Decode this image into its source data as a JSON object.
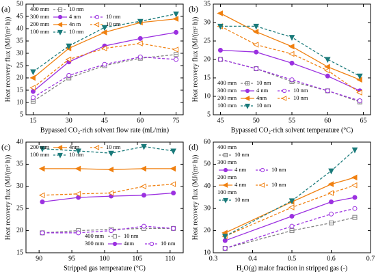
{
  "chart_data": [
    {
      "type": "line",
      "panel_label": "(a)",
      "x_label": "Bypassed CO₂-rich solvent flow rate (mL/min)",
      "y_label": "Heat recovery flux (MJ/(m² h))",
      "x": [
        15,
        30,
        45,
        60,
        75
      ],
      "xlim": [
        12,
        78
      ],
      "xticks": [
        15,
        30,
        45,
        60,
        75
      ],
      "ylim": [
        5,
        50
      ],
      "yticks": [
        5,
        10,
        15,
        20,
        25,
        30,
        35,
        40,
        45,
        50
      ],
      "legend_layout": "rows",
      "groups": [
        {
          "name": "400 mm",
          "legend_corner": "upper left",
          "series": [
            {
              "name": "10 nm",
              "color": "#808080",
              "marker": "square-minus",
              "filled": false,
              "dash": true,
              "values": [
                10.5,
                20,
                25,
                28,
                29.5
              ]
            }
          ]
        },
        {
          "name": "300 mm",
          "legend_corner": "upper left",
          "series": [
            {
              "name": "4 nm",
              "color": "#9b30e0",
              "marker": "circle",
              "filled": true,
              "dash": false,
              "values": [
                14.5,
                26.5,
                33,
                36,
                38.5
              ]
            },
            {
              "name": "10 nm",
              "color": "#9b30e0",
              "marker": "circle",
              "filled": false,
              "dash": true,
              "values": [
                12,
                21,
                25.5,
                28.5,
                27.5
              ]
            }
          ]
        },
        {
          "name": "200 mm",
          "legend_corner": "upper left",
          "series": [
            {
              "name": "4n m",
              "color": "#f08010",
              "marker": "tri-left",
              "filled": true,
              "dash": false,
              "values": [
                20,
                32,
                38.5,
                42.5,
                44
              ]
            },
            {
              "name": "10 nm",
              "color": "#f08010",
              "marker": "tri-left",
              "filled": false,
              "dash": true,
              "values": [
                16,
                27.5,
                32,
                34,
                31.5
              ]
            }
          ]
        },
        {
          "name": "100 mm",
          "legend_corner": "upper left",
          "series": [
            {
              "name": "10 nm",
              "color": "#1a7a7a",
              "marker": "tri-down",
              "filled": true,
              "dash": true,
              "values": [
                22.5,
                33,
                40.5,
                43,
                46
              ]
            }
          ]
        }
      ]
    },
    {
      "type": "line",
      "panel_label": "(b)",
      "x_label": "Bypassed CO₂-rich solvent temperature (°C)",
      "y_label": "Heat recovery flux (MJ/(m² h))",
      "x": [
        45,
        50,
        55,
        60,
        64.5
      ],
      "xlim": [
        44,
        66
      ],
      "xticks": [
        45,
        50,
        55,
        60,
        65
      ],
      "ylim": [
        5,
        35
      ],
      "yticks": [
        5,
        10,
        15,
        20,
        25,
        30,
        35
      ],
      "legend_layout": "rows",
      "groups": [
        {
          "name": "400 mm",
          "legend_corner": "lower left",
          "series": [
            {
              "name": "10 nm",
              "color": "#808080",
              "marker": "square-plus",
              "filled": false,
              "dash": true,
              "values": [
                20,
                17.5,
                14,
                11.5,
                8.5
              ]
            }
          ]
        },
        {
          "name": "300 mm",
          "legend_corner": "lower left",
          "series": [
            {
              "name": "4 nm",
              "color": "#9b30e0",
              "marker": "circle",
              "filled": true,
              "dash": false,
              "values": [
                22.5,
                22,
                19,
                15.5,
                11.5
              ]
            },
            {
              "name": "10 nm",
              "color": "#9b30e0",
              "marker": "circle",
              "filled": false,
              "dash": true,
              "values": [
                20,
                17.5,
                14.5,
                11.5,
                8.8
              ]
            }
          ]
        },
        {
          "name": "200 mm",
          "legend_corner": "lower left",
          "series": [
            {
              "name": "4nm",
              "color": "#f08010",
              "marker": "tri-left",
              "filled": true,
              "dash": false,
              "values": [
                32.5,
                27.5,
                23.5,
                18,
                14.5
              ]
            },
            {
              "name": "10 nm",
              "color": "#f08010",
              "marker": "tri-left",
              "filled": false,
              "dash": true,
              "values": [
                29,
                24,
                21.5,
                17,
                11
              ]
            }
          ]
        },
        {
          "name": "100 mm",
          "legend_corner": "lower left",
          "series": [
            {
              "name": "10 nm",
              "color": "#1a7a7a",
              "marker": "tri-down",
              "filled": true,
              "dash": true,
              "values": [
                29,
                29,
                26,
                20,
                15.5
              ]
            }
          ]
        }
      ]
    },
    {
      "type": "line",
      "panel_label": "(c)",
      "x_label": "Stripped gas temperature (°C)",
      "y_label": "Heat recovery flux (MJ/(m² h))",
      "x": [
        90.5,
        96,
        101,
        106,
        110.5
      ],
      "xlim": [
        88,
        112
      ],
      "xticks": [
        90,
        95,
        100,
        105,
        110
      ],
      "ylim": [
        15,
        40
      ],
      "yticks": [
        15,
        20,
        25,
        30,
        35,
        40
      ],
      "legend_layout": "rows",
      "groups": [
        {
          "name": "400 mm",
          "legend_corner": "lower right",
          "series": [
            {
              "name": "10 nm",
              "color": "#808080",
              "marker": "square",
              "filled": false,
              "dash": true,
              "values": [
                19.5,
                20,
                20.3,
                20.5,
                20.5
              ]
            }
          ]
        },
        {
          "name": "300 mm",
          "legend_corner": "lower right",
          "series": [
            {
              "name": "4nm",
              "color": "#9b30e0",
              "marker": "circle",
              "filled": true,
              "dash": false,
              "values": [
                26.5,
                27.5,
                27.8,
                28,
                28.5
              ]
            },
            {
              "name": "10 nm",
              "color": "#9b30e0",
              "marker": "circle",
              "filled": false,
              "dash": true,
              "values": [
                19.5,
                19.5,
                20,
                21,
                20.5
              ]
            }
          ]
        },
        {
          "name": "200 mm",
          "legend_corner": "upper left",
          "series": [
            {
              "name": "4nm",
              "color": "#f08010",
              "marker": "tri-left",
              "filled": true,
              "dash": false,
              "values": [
                34,
                34,
                33.8,
                34,
                34
              ]
            },
            {
              "name": "10 nm",
              "color": "#f08010",
              "marker": "tri-left",
              "filled": false,
              "dash": true,
              "values": [
                28,
                28.3,
                28.5,
                30,
                30.5
              ]
            }
          ]
        },
        {
          "name": "100 mm",
          "legend_corner": "upper left",
          "series": [
            {
              "name": "10 nm",
              "color": "#1a7a7a",
              "marker": "tri-down",
              "filled": true,
              "dash": true,
              "values": [
                38.5,
                38,
                37.5,
                39,
                38
              ]
            }
          ]
        }
      ]
    },
    {
      "type": "line",
      "panel_label": "(d)",
      "x_label": "H₂O(g) malor fraction in stripped gas (-)",
      "y_label": "Heat recovery flux (MJ/(m² h))",
      "x": [
        0.33,
        0.5,
        0.6,
        0.66
      ],
      "xlim": [
        0.3,
        0.7
      ],
      "xticks": [
        0.3,
        0.4,
        0.5,
        0.6,
        0.7
      ],
      "ylim": [
        10,
        60
      ],
      "yticks": [
        10,
        20,
        30,
        40,
        50,
        60
      ],
      "legend_layout": "stacked",
      "groups": [
        {
          "name": "400 mm",
          "legend_corner": "upper left",
          "series": [
            {
              "name": "10 nm",
              "color": "#808080",
              "marker": "square-minus",
              "filled": false,
              "dash": true,
              "values": [
                12,
                20,
                23.5,
                26
              ]
            }
          ]
        },
        {
          "name": "300 mm",
          "legend_corner": "upper left",
          "series": [
            {
              "name": "4 nm",
              "color": "#9b30e0",
              "marker": "circle",
              "filled": true,
              "dash": false,
              "values": [
                15.5,
                26.5,
                33,
                35
              ]
            },
            {
              "name": "10 nm",
              "color": "#9b30e0",
              "marker": "circle",
              "filled": false,
              "dash": true,
              "values": [
                12,
                22,
                27.5,
                30
              ]
            }
          ]
        },
        {
          "name": "200 mm",
          "legend_corner": "upper left",
          "series": [
            {
              "name": "4 nm",
              "color": "#f08010",
              "marker": "tri-left",
              "filled": true,
              "dash": false,
              "values": [
                19,
                33,
                41,
                44
              ]
            },
            {
              "name": "10 nm",
              "color": "#f08010",
              "marker": "tri-left",
              "filled": false,
              "dash": true,
              "values": [
                17.5,
                30.5,
                37,
                40.5
              ]
            }
          ]
        },
        {
          "name": "100 mm",
          "legend_corner": "upper left",
          "series": [
            {
              "name": "10 nm",
              "color": "#1a7a7a",
              "marker": "tri-down",
              "filled": true,
              "dash": true,
              "values": [
                17.5,
                33.5,
                47,
                56.5
              ]
            }
          ]
        }
      ]
    }
  ]
}
